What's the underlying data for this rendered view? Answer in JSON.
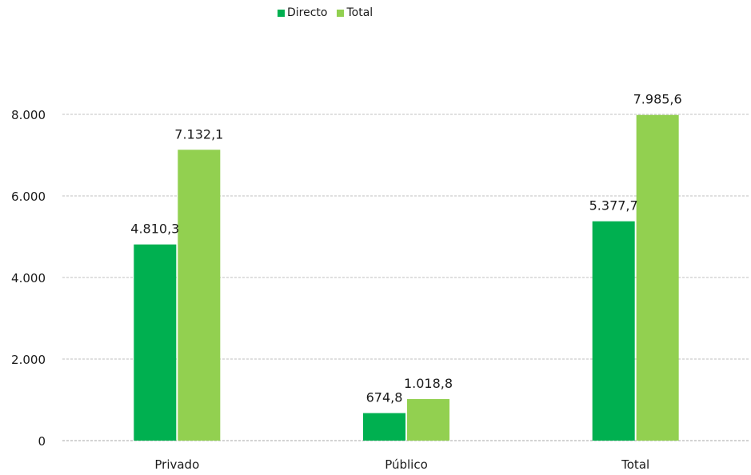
{
  "chart_data": {
    "type": "bar",
    "categories": [
      "Privado",
      "Público",
      "Total"
    ],
    "series": [
      {
        "name": "Directo",
        "values": [
          4810.3,
          674.8,
          5377.7
        ],
        "labels": [
          "4.810,3",
          "674,8",
          "5.377,7"
        ],
        "color": "#00b050"
      },
      {
        "name": "Total",
        "values": [
          7132.1,
          1018.8,
          7985.6
        ],
        "labels": [
          "7.132,1",
          "1.018,8",
          "7.985,6"
        ],
        "color": "#92d050"
      }
    ],
    "ylim": [
      0,
      8000
    ],
    "yticks": [
      0,
      2000,
      4000,
      6000,
      8000
    ],
    "ytick_labels": [
      "0",
      "2.000",
      "4.000",
      "6.000",
      "8.000"
    ],
    "grid": true,
    "legend_position": "top-center",
    "title": "",
    "xlabel": "",
    "ylabel": ""
  }
}
